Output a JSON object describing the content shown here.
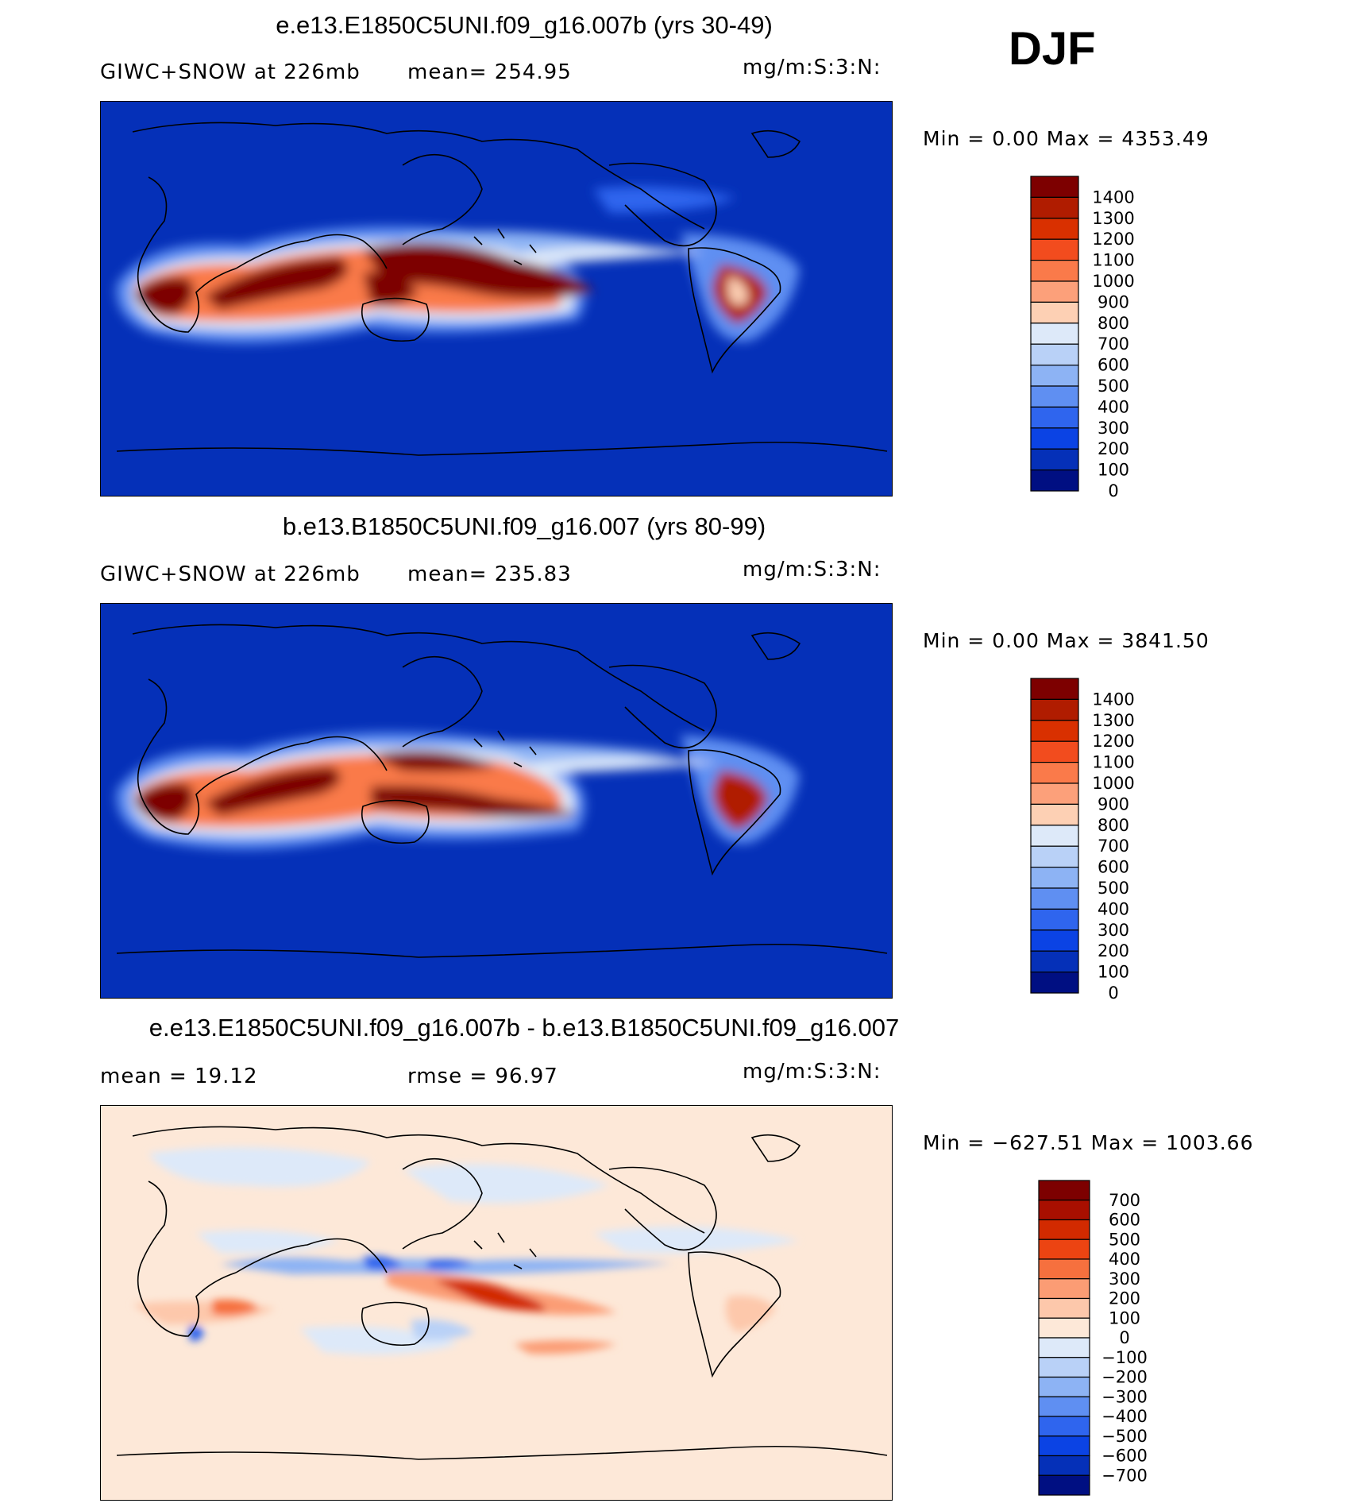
{
  "season": "DJF",
  "panels": [
    {
      "title": "e.e13.E1850C5UNI.f09_g16.007b (yrs 30-49)",
      "left_text": "GIWC+SNOW at 226mb",
      "mid_text": "mean= 254.95",
      "units": "mg/m:S:3:N:",
      "minmax": "Min =    0.00 Max = 4353.49",
      "colorbar": {
        "labels": [
          "1400",
          "1300",
          "1200",
          "1100",
          "1000",
          "900",
          "800",
          "700",
          "600",
          "500",
          "400",
          "300",
          "200",
          "100",
          "0"
        ],
        "colors": [
          "#7d0000",
          "#b01c00",
          "#d93000",
          "#f24c1e",
          "#fa7a4a",
          "#fca07a",
          "#fdd0b4",
          "#dde9f9",
          "#b9d1f7",
          "#8db3f4",
          "#5f8ff2",
          "#2f65ee",
          "#0b43e4",
          "#0530b8",
          "#000f82"
        ]
      }
    },
    {
      "title": "b.e13.B1850C5UNI.f09_g16.007 (yrs 80-99)",
      "left_text": "GIWC+SNOW at 226mb",
      "mid_text": "mean= 235.83",
      "units": "mg/m:S:3:N:",
      "minmax": "Min =    0.00 Max = 3841.50",
      "colorbar": {
        "labels": [
          "1400",
          "1300",
          "1200",
          "1100",
          "1000",
          "900",
          "800",
          "700",
          "600",
          "500",
          "400",
          "300",
          "200",
          "100",
          "0"
        ],
        "colors": [
          "#7d0000",
          "#b01c00",
          "#d93000",
          "#f24c1e",
          "#fa7a4a",
          "#fca07a",
          "#fdd0b4",
          "#dde9f9",
          "#b9d1f7",
          "#8db3f4",
          "#5f8ff2",
          "#2f65ee",
          "#0b43e4",
          "#0530b8",
          "#000f82"
        ]
      }
    },
    {
      "title": "e.e13.E1850C5UNI.f09_g16.007b - b.e13.B1850C5UNI.f09_g16.007",
      "left_text": "mean =   19.12",
      "mid_text": "rmse =   96.97",
      "units": "mg/m:S:3:N:",
      "minmax": "Min = −627.51 Max = 1003.66",
      "colorbar": {
        "labels": [
          "700",
          "600",
          "500",
          "400",
          "300",
          "200",
          "100",
          "0",
          "−100",
          "−200",
          "−300",
          "−400",
          "−500",
          "−600",
          "−700"
        ],
        "colors": [
          "#7d0000",
          "#a80f00",
          "#d22a00",
          "#ec4412",
          "#f6703e",
          "#fb9c74",
          "#fdc8ab",
          "#fde8d8",
          "#dde9f9",
          "#b9d1f7",
          "#8db3f4",
          "#5f8ff2",
          "#2f65ee",
          "#0b43e4",
          "#0530b8",
          "#000f82"
        ]
      }
    }
  ]
}
